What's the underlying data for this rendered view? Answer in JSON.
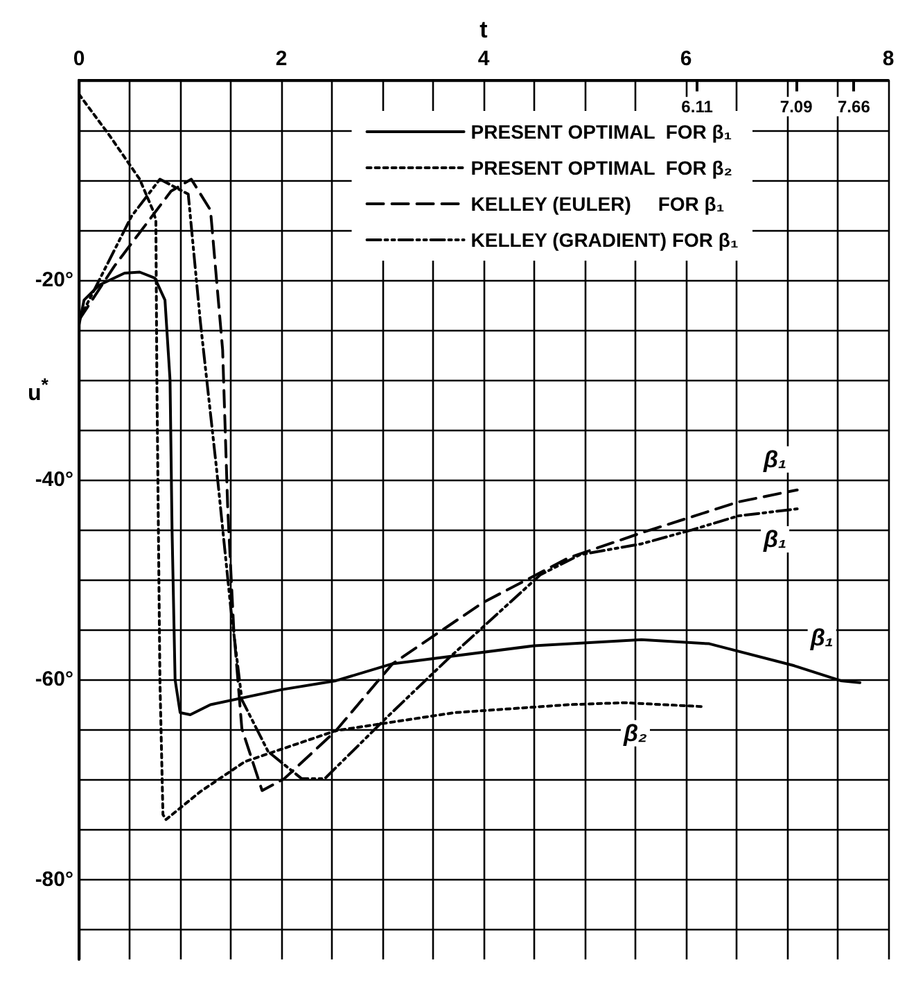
{
  "chart_data": {
    "type": "line",
    "xlabel": "t",
    "ylabel": "u$^{*}$",
    "xlim": [
      0,
      8
    ],
    "ylim": [
      -88,
      0
    ],
    "xticks": [
      0,
      {
        "value": 0.5,
        "label": null
      },
      {
        "value": 1,
        "label": null
      },
      {
        "value": 1.5,
        "label": null
      },
      2,
      {
        "value": 2.5,
        "label": null
      },
      {
        "value": 3,
        "label": null
      },
      {
        "value": 3.5,
        "label": null
      },
      4,
      {
        "value": 4.5,
        "label": null
      },
      {
        "value": 5,
        "label": null
      },
      {
        "value": 5.5,
        "label": null
      },
      6,
      {
        "value": 6.5,
        "label": null
      },
      {
        "value": 7,
        "label": null
      },
      {
        "value": 7.5,
        "label": null
      },
      8
    ],
    "x2lim": [
      0,
      8
    ],
    "x2ticks": [
      6.11,
      7.09,
      7.66
    ],
    "yticks": [
      {
        "value": 0,
        "label": null
      },
      {
        "value": -5,
        "label": null
      },
      {
        "value": -10,
        "label": null
      },
      {
        "value": -15,
        "label": null
      },
      {
        "value": -20,
        "label": "-20°"
      },
      {
        "value": -25,
        "label": null
      },
      {
        "value": -30,
        "label": null
      },
      {
        "value": -35,
        "label": null
      },
      {
        "value": -40,
        "label": "-40°"
      },
      {
        "value": -45,
        "label": null
      },
      {
        "value": -50,
        "label": null
      },
      {
        "value": -55,
        "label": null
      },
      {
        "value": -60,
        "label": "-60°"
      },
      {
        "value": -65,
        "label": null
      },
      {
        "value": -70,
        "label": null
      },
      {
        "value": -75,
        "label": null
      },
      {
        "value": -80,
        "label": "-80°"
      },
      {
        "value": -85,
        "label": null
      }
    ],
    "grid": true,
    "legend": "top right",
    "marker": "none",
    "series": [
      {
        "name": "PRESENT OPTIMAL  FOR β₁",
        "color": "#000000",
        "line_style": "solid",
        "x": [
          0,
          0.05,
          0.2,
          0.45,
          0.6,
          0.75,
          0.85,
          0.9,
          0.92,
          0.95,
          1.0,
          1.1,
          1.3,
          2.0,
          2.54,
          3.1,
          4.5,
          5.56,
          6.23,
          7.07,
          7.53,
          7.72
        ],
        "values": [
          -24.5,
          -22,
          -20.5,
          -19.3,
          -19.2,
          -19.8,
          -22,
          -30,
          -45,
          -60,
          -63.3,
          -63.5,
          -62.5,
          -61,
          -60.1,
          -58.4,
          -56.6,
          -56.0,
          -56.4,
          -58.6,
          -60.1,
          -60.3
        ]
      },
      {
        "name": "PRESENT OPTIMAL  FOR β₂",
        "color": "#000000",
        "line_style": "dotted",
        "x": [
          0,
          0.3,
          0.6,
          0.73,
          0.76,
          0.77,
          0.8,
          0.83,
          0.86,
          1.2,
          1.64,
          2.54,
          3.71,
          4.84,
          5.39,
          6.18
        ],
        "values": [
          -1.4,
          -5.5,
          -9.9,
          -13,
          -14,
          -30,
          -60,
          -73.5,
          -74,
          -71.2,
          -68.2,
          -65.1,
          -63.3,
          -62.5,
          -62.3,
          -62.7
        ]
      },
      {
        "name": "KELLEY (EULER)     FOR β₁",
        "color": "#000000",
        "line_style": "dashed",
        "x": [
          0,
          0.35,
          0.91,
          1.11,
          1.3,
          1.42,
          1.47,
          1.53,
          1.61,
          1.81,
          2.03,
          2.54,
          3.1,
          3.99,
          4.84,
          5.56,
          6.52,
          7.1
        ],
        "values": [
          -24,
          -18.6,
          -11.1,
          -9.9,
          -13,
          -27,
          -42.8,
          -55,
          -64.9,
          -71.1,
          -69.9,
          -65.1,
          -58.4,
          -52.3,
          -47.8,
          -45.3,
          -42.2,
          -41.0
        ]
      },
      {
        "name": "KELLEY (GRADIENT) FOR β₁",
        "color": "#000000",
        "line_style": "dashdot",
        "x": [
          0,
          0.52,
          0.8,
          1.08,
          1.2,
          1.36,
          1.5,
          1.61,
          1.87,
          2.2,
          2.43,
          3.04,
          3.66,
          4.56,
          4.95,
          5.56,
          6.06,
          6.52,
          7.1
        ],
        "values": [
          -24,
          -13.6,
          -9.9,
          -11.4,
          -24.2,
          -38.9,
          -52.8,
          -62,
          -67.2,
          -69.9,
          -69.9,
          -63.8,
          -57.8,
          -49.5,
          -47.5,
          -46.4,
          -45,
          -43.6,
          -42.9
        ]
      }
    ],
    "annotations": [
      {
        "text": "β₁",
        "x": 7.1,
        "y": -41.0
      },
      {
        "text": "β₁",
        "x": 7.1,
        "y": -42.9
      },
      {
        "text": "β₁",
        "x": 7.07,
        "y": -58.6
      },
      {
        "text": "β₂",
        "x": 5.39,
        "y": -62.3
      }
    ]
  }
}
